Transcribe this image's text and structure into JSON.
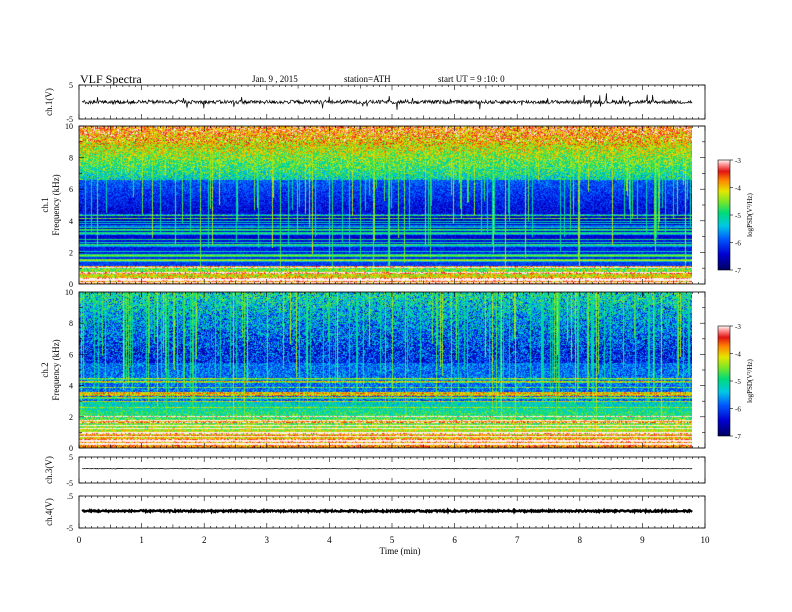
{
  "header": {
    "title": "VLF Spectra",
    "date": "Jan. 9 , 2015",
    "station": "station=ATH",
    "start": "start UT = 9 :10: 0"
  },
  "chart_data": {
    "type": "heatmap",
    "xlabel": "Time (min)",
    "xlim": [
      0,
      10
    ],
    "x_ticks": [
      "0",
      "1",
      "2",
      "3",
      "4",
      "5",
      "6",
      "7",
      "8",
      "9",
      "10"
    ],
    "data_end_min": 9.8,
    "colorbar_label": "logPSD(V²/Hz)",
    "colorbar_ticks": [
      "-3",
      "-4",
      "-5",
      "-6",
      "-7"
    ],
    "colorbar_range": [
      -7,
      -3
    ],
    "panels": [
      {
        "name": "ch1-waveform",
        "ylabel": "ch.1(V)",
        "ylim": [
          -5,
          5
        ],
        "y_ticks": [
          "5",
          "-5"
        ],
        "trace_level": 0,
        "noise": 0.55
      },
      {
        "name": "ch1-spectrogram",
        "ylabel": "ch.1",
        "ylabel2": "Frequency (kHz)",
        "ylim": [
          0,
          10
        ],
        "y_ticks": [
          "10",
          "8",
          "6",
          "4",
          "2",
          "0"
        ]
      },
      {
        "name": "ch2-spectrogram",
        "ylabel": "ch.2",
        "ylabel2": "Frequency (kHz)",
        "ylim": [
          0,
          10
        ],
        "y_ticks": [
          "10",
          "8",
          "6",
          "4",
          "2",
          "0"
        ]
      },
      {
        "name": "ch3-waveform",
        "ylabel": "ch.3(V)",
        "ylim": [
          -5,
          5
        ],
        "y_ticks": [
          "5",
          "-5"
        ],
        "trace_level": 0.5,
        "noise": 0.12
      },
      {
        "name": "ch4-waveform",
        "ylabel": "ch.4(V)",
        "ylim": [
          -5,
          5
        ],
        "y_ticks": [
          ".5",
          "-5"
        ],
        "trace_level": 0.3,
        "noise": 0.25
      }
    ]
  }
}
